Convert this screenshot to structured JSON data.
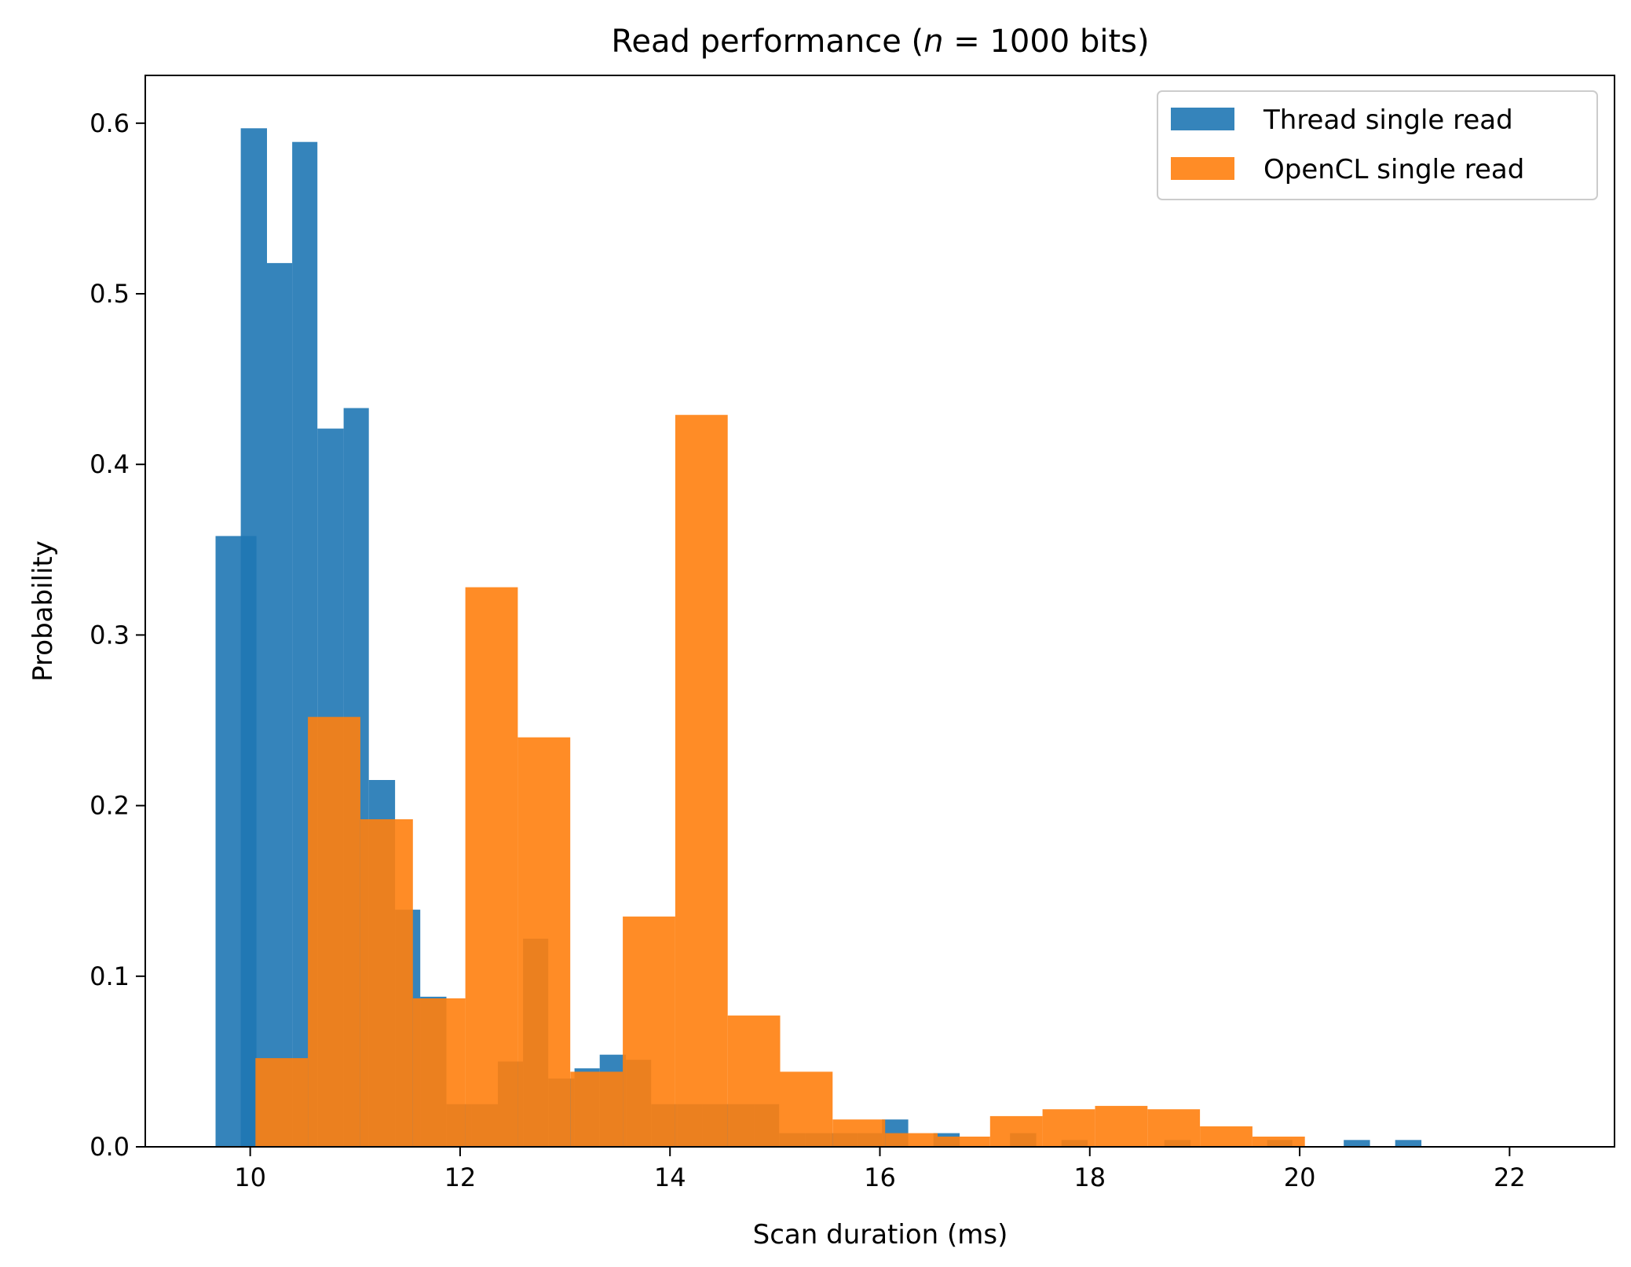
{
  "chart_data": {
    "type": "histogram",
    "title": "Read performance (n = 1000 bits)",
    "title_parts": {
      "prefix": "Read performance (",
      "var": "n",
      "eq": " = ",
      "suffix": "1000 bits)"
    },
    "xlabel": "Scan duration (ms)",
    "ylabel": "Probability",
    "xlim": [
      9.0,
      23.0
    ],
    "ylim": [
      0.0,
      0.628
    ],
    "xticks": [
      10,
      12,
      14,
      16,
      18,
      20,
      22
    ],
    "yticks": [
      0.0,
      0.1,
      0.2,
      0.3,
      0.4,
      0.5,
      0.6
    ],
    "legend_position": "top-right",
    "series": [
      {
        "name": "Thread single read",
        "color": "#1f77b4",
        "alpha": 0.9,
        "bins": [
          [
            9.67,
            10.06,
            0.358
          ],
          [
            9.91,
            10.16,
            0.597
          ],
          [
            10.16,
            10.4,
            0.518
          ],
          [
            10.4,
            10.64,
            0.589
          ],
          [
            10.64,
            10.89,
            0.421
          ],
          [
            10.89,
            11.13,
            0.433
          ],
          [
            11.13,
            11.38,
            0.215
          ],
          [
            11.38,
            11.62,
            0.139
          ],
          [
            11.62,
            11.87,
            0.088
          ],
          [
            11.87,
            12.11,
            0.025
          ],
          [
            12.11,
            12.36,
            0.025
          ],
          [
            12.36,
            12.6,
            0.05
          ],
          [
            12.6,
            12.84,
            0.122
          ],
          [
            12.84,
            13.09,
            0.04
          ],
          [
            13.09,
            13.33,
            0.046
          ],
          [
            13.33,
            13.58,
            0.054
          ],
          [
            13.58,
            13.82,
            0.051
          ],
          [
            13.82,
            14.07,
            0.025
          ],
          [
            14.07,
            14.31,
            0.025
          ],
          [
            14.31,
            14.56,
            0.025
          ],
          [
            14.56,
            14.8,
            0.025
          ],
          [
            14.8,
            15.04,
            0.025
          ],
          [
            15.04,
            15.29,
            0.008
          ],
          [
            15.29,
            15.53,
            0.008
          ],
          [
            15.53,
            15.78,
            0.008
          ],
          [
            15.78,
            16.02,
            0.008
          ],
          [
            16.02,
            16.27,
            0.016
          ],
          [
            16.51,
            16.76,
            0.008
          ],
          [
            17.24,
            17.49,
            0.008
          ],
          [
            17.73,
            17.98,
            0.004
          ],
          [
            18.71,
            18.96,
            0.004
          ],
          [
            19.69,
            19.93,
            0.004
          ],
          [
            20.42,
            20.67,
            0.004
          ],
          [
            20.91,
            21.16,
            0.004
          ]
        ]
      },
      {
        "name": "OpenCL single read",
        "color": "#ff7f0e",
        "alpha": 0.9,
        "bins": [
          [
            10.05,
            10.55,
            0.052
          ],
          [
            10.55,
            11.05,
            0.252
          ],
          [
            11.05,
            11.55,
            0.192
          ],
          [
            11.55,
            12.05,
            0.087
          ],
          [
            12.05,
            12.55,
            0.328
          ],
          [
            12.55,
            13.05,
            0.24
          ],
          [
            13.05,
            13.55,
            0.044
          ],
          [
            13.55,
            14.05,
            0.135
          ],
          [
            14.05,
            14.55,
            0.429
          ],
          [
            14.55,
            15.05,
            0.077
          ],
          [
            15.05,
            15.55,
            0.044
          ],
          [
            15.55,
            16.05,
            0.016
          ],
          [
            16.05,
            16.55,
            0.008
          ],
          [
            16.55,
            17.05,
            0.006
          ],
          [
            17.05,
            17.55,
            0.018
          ],
          [
            17.55,
            18.05,
            0.022
          ],
          [
            18.05,
            18.55,
            0.024
          ],
          [
            18.55,
            19.05,
            0.022
          ],
          [
            19.05,
            19.55,
            0.012
          ],
          [
            19.55,
            20.05,
            0.006
          ]
        ]
      }
    ]
  }
}
